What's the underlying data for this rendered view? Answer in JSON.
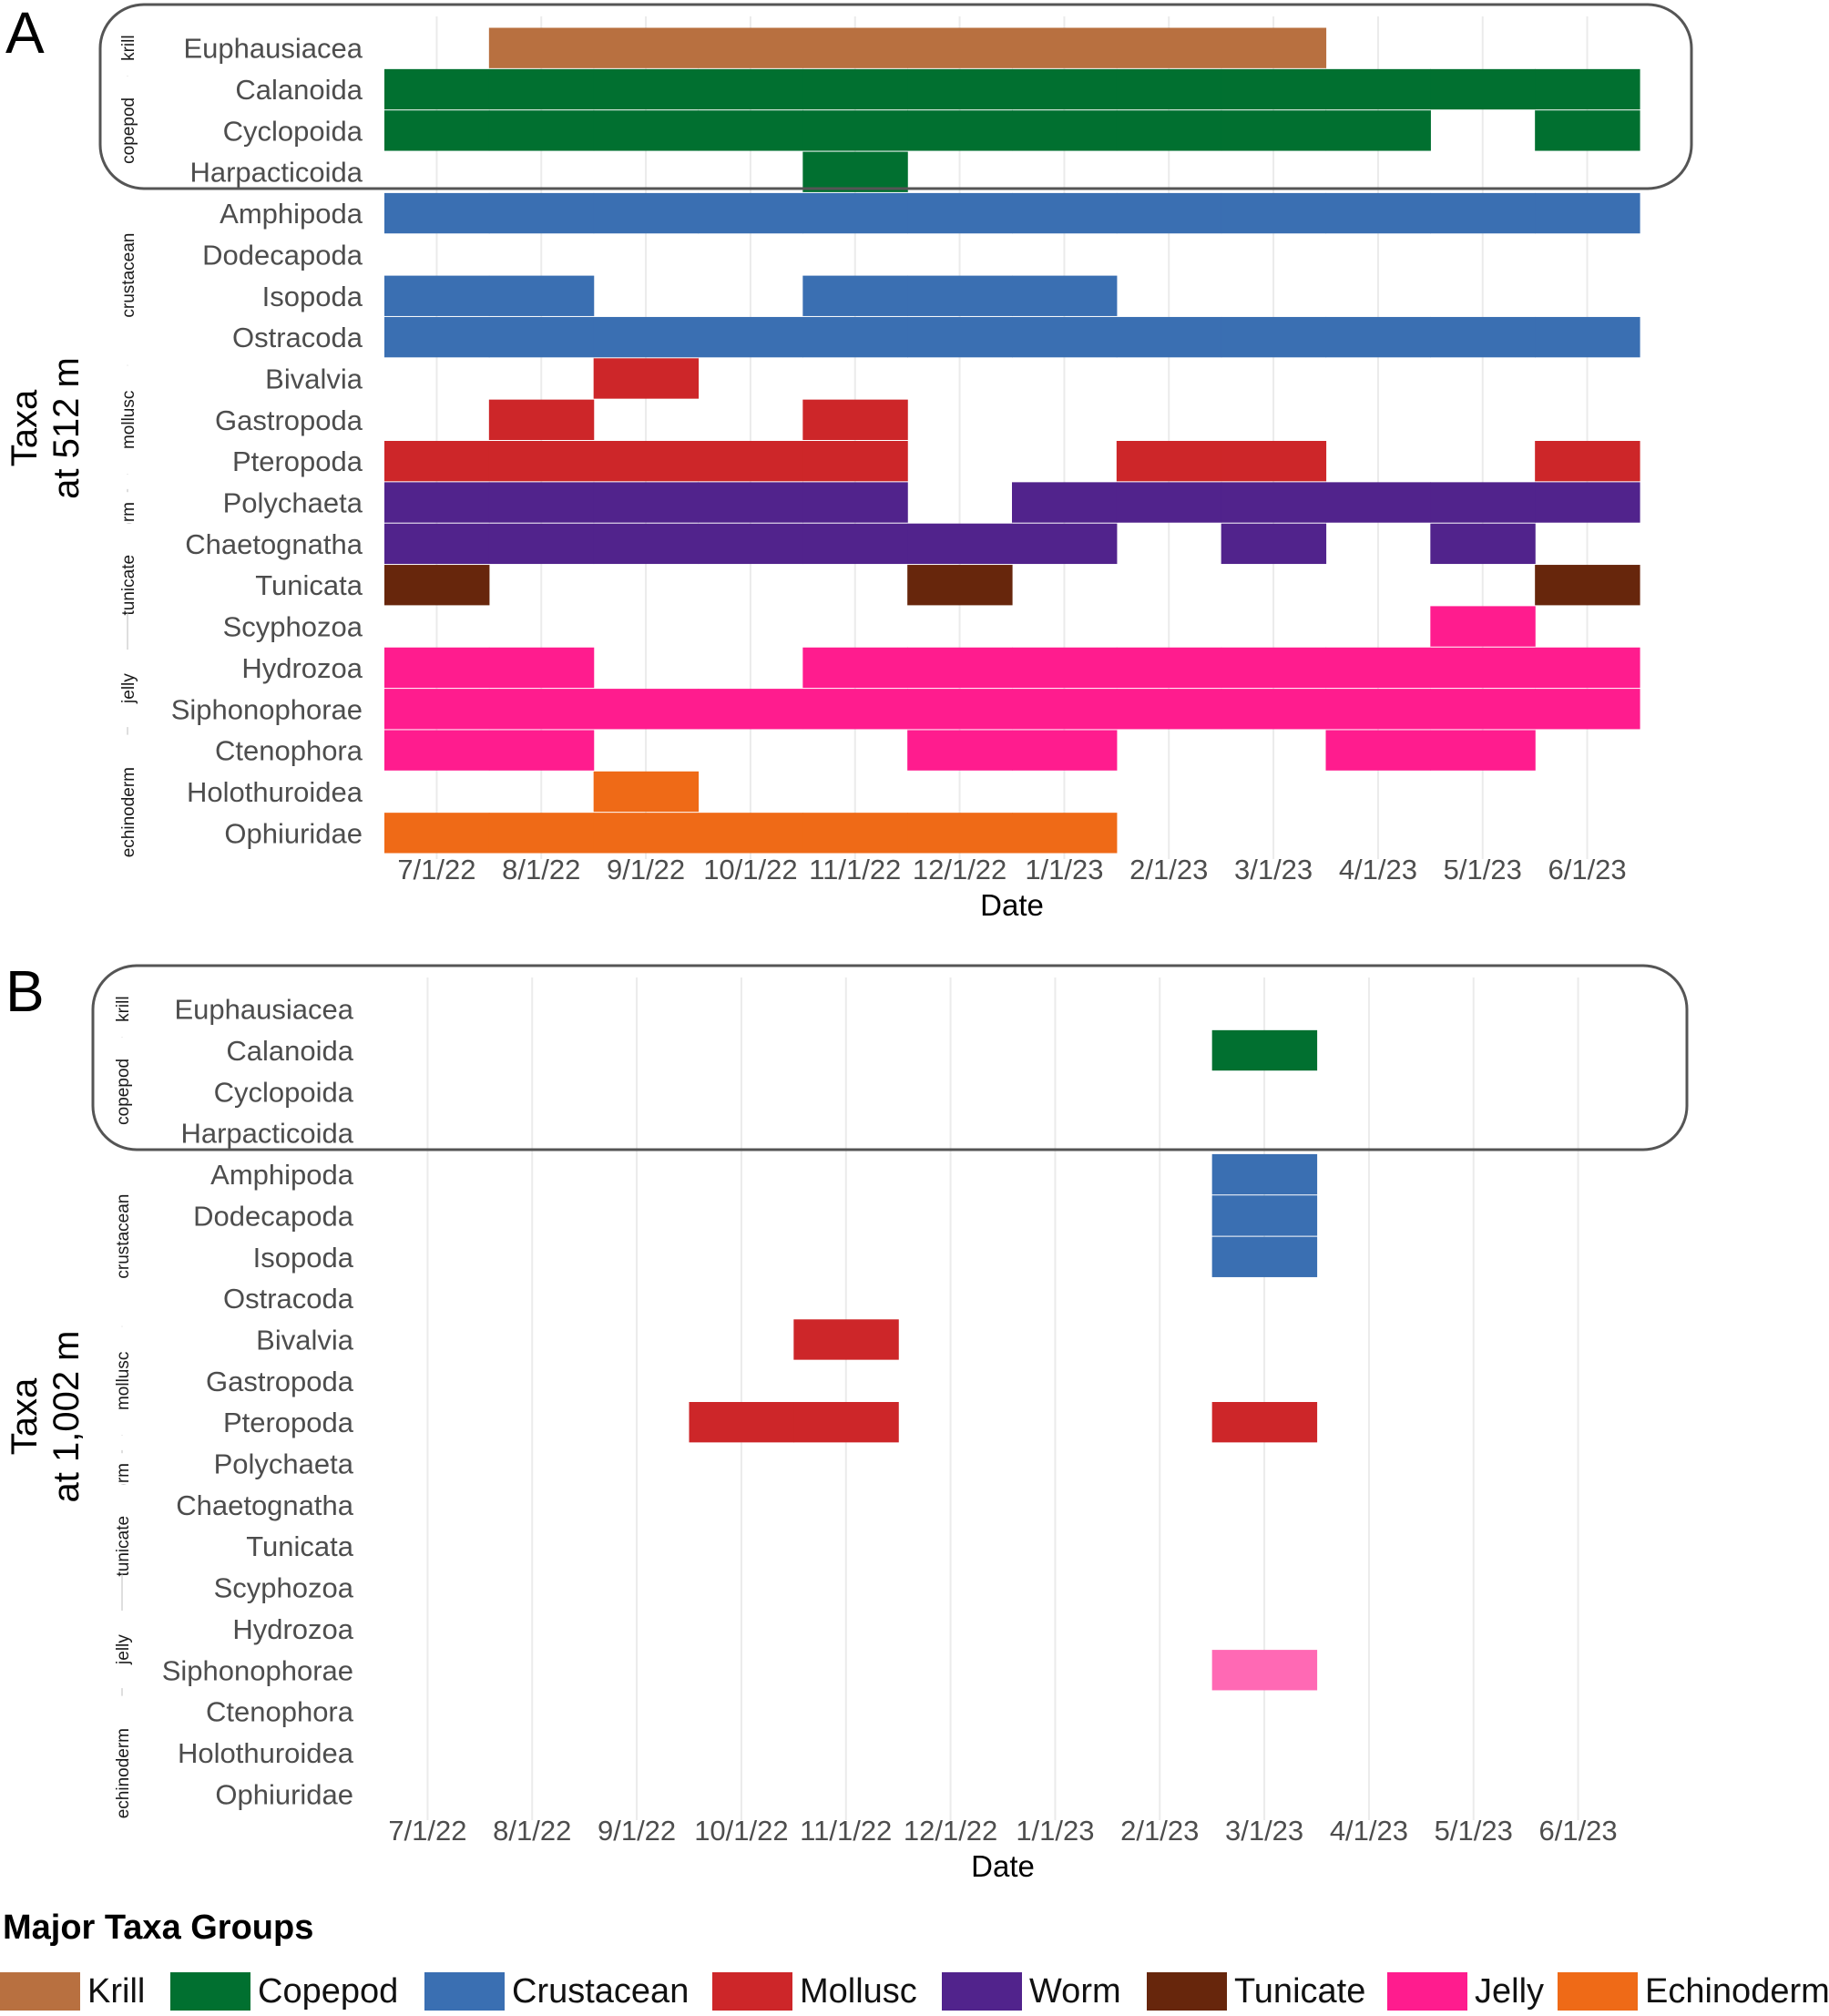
{
  "group_colors": {
    "krill": "#B87040",
    "copepod": "#017030",
    "crustacean": "#3A6FB2",
    "mollusc": "#CD2629",
    "worm": "#51238C",
    "tunicate": "#67260C",
    "jelly": "#FF1C8E",
    "echinoderm": "#EF6A17"
  },
  "chart_data": [
    {
      "type": "heatmap",
      "panel_label": "A",
      "ylabel": "Taxa\nat 512 m",
      "xlabel": "Date",
      "x_ticks": [
        "7/1/22",
        "8/1/22",
        "9/1/22",
        "10/1/22",
        "11/1/22",
        "12/1/22",
        "1/1/23",
        "2/1/23",
        "3/1/23",
        "4/1/23",
        "5/1/23",
        "6/1/23"
      ],
      "x_range": [
        "6/15/22",
        "6/15/23"
      ],
      "groups": [
        {
          "name": "krill",
          "taxa": [
            "Euphausiacea"
          ]
        },
        {
          "name": "copepod",
          "taxa": [
            "Calanoida",
            "Cyclopoida",
            "Harpacticoida"
          ]
        },
        {
          "name": "crustacean",
          "taxa": [
            "Amphipoda",
            "Dodecapoda",
            "Isopoda",
            "Ostracoda"
          ]
        },
        {
          "name": "mollusc",
          "taxa": [
            "Bivalvia",
            "Gastropoda",
            "Pteropoda"
          ]
        },
        {
          "name": "worm",
          "taxa": [
            "Polychaeta",
            "Chaetognatha"
          ]
        },
        {
          "name": "tunicate",
          "taxa": [
            "Tunicata"
          ]
        },
        {
          "name": "jelly",
          "taxa": [
            "Scyphozoa",
            "Hydrozoa",
            "Siphonophorae",
            "Ctenophora"
          ]
        },
        {
          "name": "echinoderm",
          "taxa": [
            "Holothuroidea",
            "Ophiuridae"
          ]
        }
      ],
      "highlight_box_taxa": [
        "Euphausiacea",
        "Calanoida",
        "Cyclopoida",
        "Harpacticoida"
      ],
      "presence": [
        {
          "taxon": "Euphausiacea",
          "group": "krill",
          "months": [
            "8/1/22",
            "9/1/22",
            "10/1/22",
            "11/1/22",
            "12/1/22",
            "1/1/23",
            "2/1/23",
            "3/1/23"
          ]
        },
        {
          "taxon": "Calanoida",
          "group": "copepod",
          "months": [
            "7/1/22",
            "8/1/22",
            "9/1/22",
            "10/1/22",
            "11/1/22",
            "12/1/22",
            "1/1/23",
            "2/1/23",
            "3/1/23",
            "4/1/23",
            "5/1/23",
            "6/1/23"
          ]
        },
        {
          "taxon": "Cyclopoida",
          "group": "copepod",
          "months": [
            "7/1/22",
            "8/1/22",
            "9/1/22",
            "10/1/22",
            "11/1/22",
            "12/1/22",
            "1/1/23",
            "2/1/23",
            "3/1/23",
            "4/1/23",
            "6/1/23"
          ]
        },
        {
          "taxon": "Harpacticoida",
          "group": "copepod",
          "months": [
            "11/1/22"
          ]
        },
        {
          "taxon": "Amphipoda",
          "group": "crustacean",
          "months": [
            "7/1/22",
            "8/1/22",
            "9/1/22",
            "10/1/22",
            "11/1/22",
            "12/1/22",
            "1/1/23",
            "2/1/23",
            "3/1/23",
            "4/1/23",
            "5/1/23",
            "6/1/23"
          ]
        },
        {
          "taxon": "Dodecapoda",
          "group": "crustacean",
          "months": []
        },
        {
          "taxon": "Isopoda",
          "group": "crustacean",
          "months": [
            "7/1/22",
            "8/1/22",
            "11/1/22",
            "12/1/22",
            "1/1/23"
          ]
        },
        {
          "taxon": "Ostracoda",
          "group": "crustacean",
          "months": [
            "7/1/22",
            "8/1/22",
            "9/1/22",
            "10/1/22",
            "11/1/22",
            "12/1/22",
            "1/1/23",
            "2/1/23",
            "3/1/23",
            "4/1/23",
            "5/1/23",
            "6/1/23"
          ]
        },
        {
          "taxon": "Bivalvia",
          "group": "mollusc",
          "months": [
            "9/1/22"
          ]
        },
        {
          "taxon": "Gastropoda",
          "group": "mollusc",
          "months": [
            "8/1/22",
            "11/1/22"
          ]
        },
        {
          "taxon": "Pteropoda",
          "group": "mollusc",
          "months": [
            "7/1/22",
            "8/1/22",
            "9/1/22",
            "10/1/22",
            "11/1/22",
            "2/1/23",
            "3/1/23",
            "6/1/23"
          ]
        },
        {
          "taxon": "Polychaeta",
          "group": "worm",
          "months": [
            "7/1/22",
            "8/1/22",
            "9/1/22",
            "10/1/22",
            "11/1/22",
            "1/1/23",
            "2/1/23",
            "3/1/23",
            "4/1/23",
            "5/1/23",
            "6/1/23"
          ]
        },
        {
          "taxon": "Chaetognatha",
          "group": "worm",
          "months": [
            "7/1/22",
            "8/1/22",
            "9/1/22",
            "10/1/22",
            "11/1/22",
            "12/1/22",
            "1/1/23",
            "3/1/23",
            "5/1/23"
          ]
        },
        {
          "taxon": "Tunicata",
          "group": "tunicate",
          "months": [
            "7/1/22",
            "12/1/22",
            "6/1/23"
          ]
        },
        {
          "taxon": "Scyphozoa",
          "group": "jelly",
          "months": [
            "5/1/23"
          ]
        },
        {
          "taxon": "Hydrozoa",
          "group": "jelly",
          "months": [
            "7/1/22",
            "8/1/22",
            "11/1/22",
            "12/1/22",
            "1/1/23",
            "2/1/23",
            "3/1/23",
            "4/1/23",
            "5/1/23",
            "6/1/23"
          ]
        },
        {
          "taxon": "Siphonophorae",
          "group": "jelly",
          "months": [
            "7/1/22",
            "8/1/22",
            "9/1/22",
            "10/1/22",
            "11/1/22",
            "12/1/22",
            "1/1/23",
            "2/1/23",
            "3/1/23",
            "4/1/23",
            "5/1/23",
            "6/1/23"
          ]
        },
        {
          "taxon": "Ctenophora",
          "group": "jelly",
          "months": [
            "7/1/22",
            "8/1/22",
            "12/1/22",
            "1/1/23",
            "4/1/23",
            "5/1/23"
          ]
        },
        {
          "taxon": "Holothuroidea",
          "group": "echinoderm",
          "months": [
            "9/1/22"
          ]
        },
        {
          "taxon": "Ophiuridae",
          "group": "echinoderm",
          "months": [
            "7/1/22",
            "8/1/22",
            "9/1/22",
            "10/1/22",
            "11/1/22",
            "12/1/22",
            "1/1/23"
          ]
        }
      ]
    },
    {
      "type": "heatmap",
      "panel_label": "B",
      "ylabel": "Taxa\nat 1,002 m",
      "xlabel": "Date",
      "x_ticks": [
        "7/1/22",
        "8/1/22",
        "9/1/22",
        "10/1/22",
        "11/1/22",
        "12/1/22",
        "1/1/23",
        "2/1/23",
        "3/1/23",
        "4/1/23",
        "5/1/23",
        "6/1/23"
      ],
      "x_range": [
        "6/15/22",
        "6/15/23"
      ],
      "groups": [
        {
          "name": "krill",
          "taxa": [
            "Euphausiacea"
          ]
        },
        {
          "name": "copepod",
          "taxa": [
            "Calanoida",
            "Cyclopoida",
            "Harpacticoida"
          ]
        },
        {
          "name": "crustacean",
          "taxa": [
            "Amphipoda",
            "Dodecapoda",
            "Isopoda",
            "Ostracoda"
          ]
        },
        {
          "name": "mollusc",
          "taxa": [
            "Bivalvia",
            "Gastropoda",
            "Pteropoda"
          ]
        },
        {
          "name": "worm",
          "taxa": [
            "Polychaeta",
            "Chaetognatha"
          ]
        },
        {
          "name": "tunicate",
          "taxa": [
            "Tunicata"
          ]
        },
        {
          "name": "jelly",
          "taxa": [
            "Scyphozoa",
            "Hydrozoa",
            "Siphonophorae",
            "Ctenophora"
          ]
        },
        {
          "name": "echinoderm",
          "taxa": [
            "Holothuroidea",
            "Ophiuridae"
          ]
        }
      ],
      "highlight_box_taxa": [
        "Euphausiacea",
        "Calanoida",
        "Cyclopoida",
        "Harpacticoida"
      ],
      "presence": [
        {
          "taxon": "Euphausiacea",
          "group": "krill",
          "months": []
        },
        {
          "taxon": "Calanoida",
          "group": "copepod",
          "months": [
            "3/1/23"
          ]
        },
        {
          "taxon": "Cyclopoida",
          "group": "copepod",
          "months": []
        },
        {
          "taxon": "Harpacticoida",
          "group": "copepod",
          "months": []
        },
        {
          "taxon": "Amphipoda",
          "group": "crustacean",
          "months": [
            "3/1/23"
          ]
        },
        {
          "taxon": "Dodecapoda",
          "group": "crustacean",
          "months": [
            "3/1/23"
          ]
        },
        {
          "taxon": "Isopoda",
          "group": "crustacean",
          "months": [
            "3/1/23"
          ]
        },
        {
          "taxon": "Ostracoda",
          "group": "crustacean",
          "months": []
        },
        {
          "taxon": "Bivalvia",
          "group": "mollusc",
          "months": [
            "11/1/22"
          ]
        },
        {
          "taxon": "Gastropoda",
          "group": "mollusc",
          "months": []
        },
        {
          "taxon": "Pteropoda",
          "group": "mollusc",
          "months": [
            "10/1/22",
            "11/1/22",
            "3/1/23"
          ]
        },
        {
          "taxon": "Polychaeta",
          "group": "worm",
          "months": []
        },
        {
          "taxon": "Chaetognatha",
          "group": "worm",
          "months": []
        },
        {
          "taxon": "Tunicata",
          "group": "tunicate",
          "months": []
        },
        {
          "taxon": "Scyphozoa",
          "group": "jelly",
          "months": []
        },
        {
          "taxon": "Hydrozoa",
          "group": "jelly",
          "months": []
        },
        {
          "taxon": "Siphonophorae",
          "group": "jelly",
          "months": [
            "3/1/23"
          ],
          "color": "#FF69B4"
        },
        {
          "taxon": "Ctenophora",
          "group": "jelly",
          "months": []
        },
        {
          "taxon": "Holothuroidea",
          "group": "echinoderm",
          "months": []
        },
        {
          "taxon": "Ophiuridae",
          "group": "echinoderm",
          "months": []
        }
      ]
    }
  ],
  "legend": {
    "title": "Major Taxa Groups",
    "items": [
      {
        "label": "Krill",
        "group": "krill"
      },
      {
        "label": "Copepod",
        "group": "copepod"
      },
      {
        "label": "Crustacean",
        "group": "crustacean"
      },
      {
        "label": "Mollusc",
        "group": "mollusc"
      },
      {
        "label": "Worm",
        "group": "worm"
      },
      {
        "label": "Tunicate",
        "group": "tunicate"
      },
      {
        "label": "Jelly",
        "group": "jelly"
      },
      {
        "label": "Echinoderm",
        "group": "echinoderm"
      }
    ]
  }
}
